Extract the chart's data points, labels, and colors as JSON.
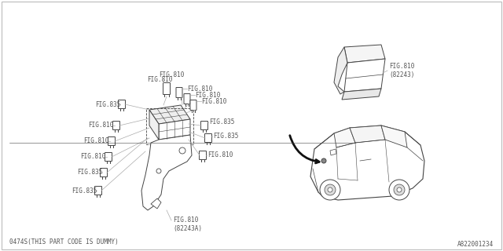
{
  "bg_color": "#ffffff",
  "line_color": "#aaaaaa",
  "dark_line_color": "#444444",
  "text_color": "#555555",
  "bottom_left_text": "0474S(THIS PART CODE IS DUMMY)",
  "bottom_right_text": "A822001234",
  "fig810_label": "FIG.810",
  "fig835_label": "FIG.835",
  "fig810_82243_label": "FIG.810\n(82243)",
  "fig810_82243a_label": "FIG.810\n(82243A)",
  "font_size": 5.5,
  "small_font_size": 5.5,
  "border_color": "#bbbbbb"
}
